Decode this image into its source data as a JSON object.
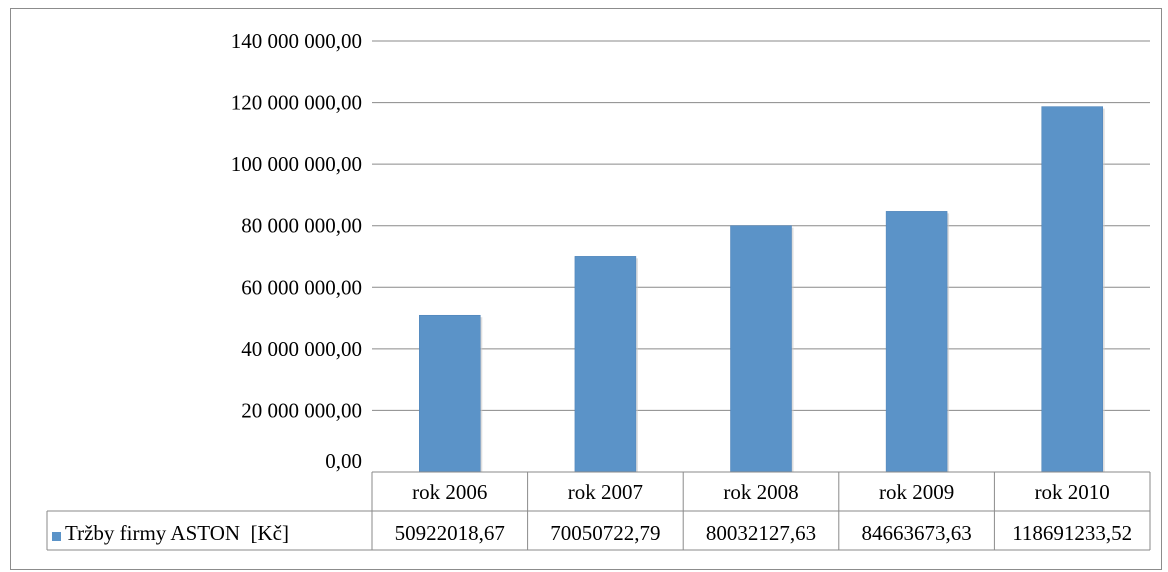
{
  "chart_data": {
    "type": "bar",
    "title": "",
    "xlabel": "",
    "ylabel": "",
    "categories": [
      "rok 2006",
      "rok 2007",
      "rok 2008",
      "rok 2009",
      "rok 2010"
    ],
    "series": [
      {
        "name": "Tržby firmy ASTON  [Kč]",
        "values": [
          50922018.67,
          70050722.79,
          80032127.63,
          84663673.63,
          118691233.52
        ],
        "value_labels": [
          "50922018,67",
          "70050722,79",
          "80032127,63",
          "84663673,63",
          "118691233,52"
        ],
        "color": "#5B93C8"
      }
    ],
    "ylim": [
      0,
      140000000
    ],
    "y_ticks": [
      0,
      20000000,
      40000000,
      60000000,
      80000000,
      100000000,
      120000000,
      140000000
    ],
    "y_tick_labels": [
      "0,00",
      "20 000 000,00",
      "40 000 000,00",
      "60 000 000,00",
      "80 000 000,00",
      "100 000 000,00",
      "120 000 000,00",
      "140 000 000,00"
    ],
    "grid": true,
    "legend": "data table"
  }
}
